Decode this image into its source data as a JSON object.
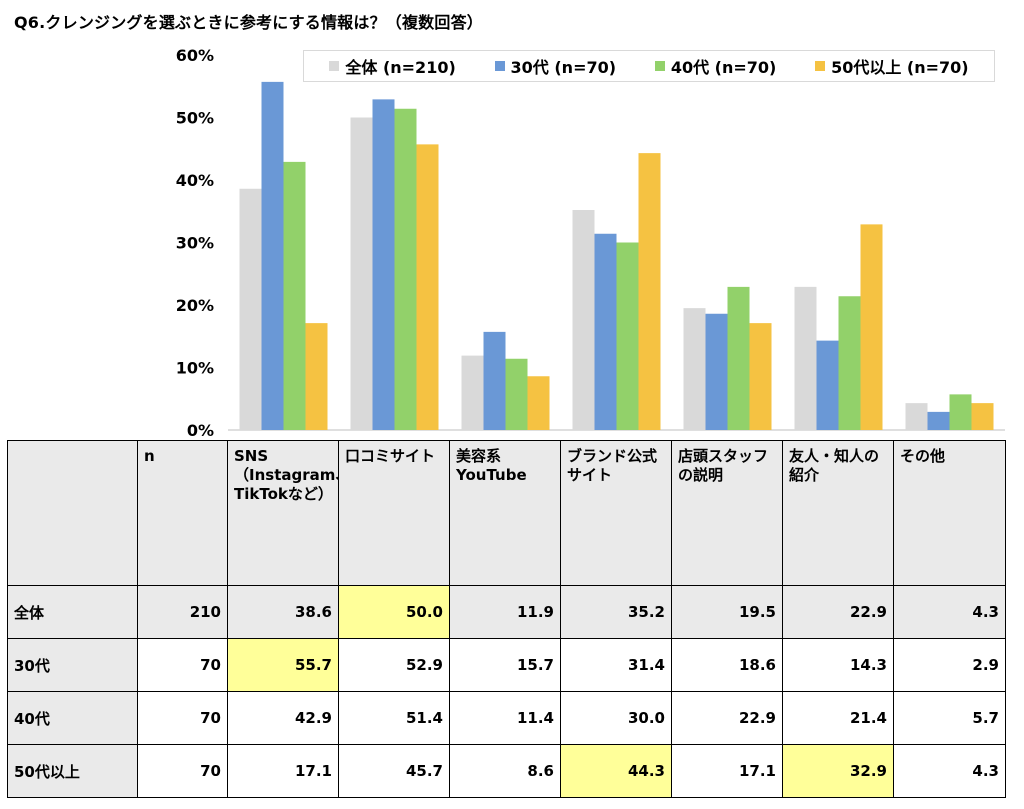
{
  "title": "Q6.クレンジングを選ぶときに参考にする情報は？（複数回答）",
  "chart_data": {
    "type": "bar",
    "categories": [
      "SNS（Instagram、TikTokなど）",
      "口コミサイト",
      "美容系YouTube",
      "ブランド公式サイト",
      "店頭スタッフの説明",
      "友人・知人の紹介",
      "その他"
    ],
    "series": [
      {
        "name": "全体 (n=210)",
        "color": "#d9d9d9",
        "values": [
          38.6,
          50.0,
          11.9,
          35.2,
          19.5,
          22.9,
          4.3
        ]
      },
      {
        "name": "30代 (n=70)",
        "color": "#6a98d6",
        "values": [
          55.7,
          52.9,
          15.7,
          31.4,
          18.6,
          14.3,
          2.9
        ]
      },
      {
        "name": "40代 (n=70)",
        "color": "#92d16a",
        "values": [
          42.9,
          51.4,
          11.4,
          30.0,
          22.9,
          21.4,
          5.7
        ]
      },
      {
        "name": "50代以上 (n=70)",
        "color": "#f5c242",
        "values": [
          17.1,
          45.7,
          8.6,
          44.3,
          17.1,
          32.9,
          4.3
        ]
      }
    ],
    "yticks": [
      "0%",
      "10%",
      "20%",
      "30%",
      "40%",
      "50%",
      "60%"
    ],
    "ylim": [
      0,
      60
    ],
    "legend_position": "top"
  },
  "table": {
    "headers": [
      "n",
      "SNS（Instagram、TikTokなど）",
      "口コミサイト",
      "美容系YouTube",
      "ブランド公式サイト",
      "店頭スタッフの説明",
      "友人・知人の紹介",
      "その他"
    ],
    "rows": [
      {
        "label": "全体",
        "n": "210",
        "values": [
          "38.6",
          "50.0",
          "11.9",
          "35.2",
          "19.5",
          "22.9",
          "4.3"
        ],
        "highlight": [
          1
        ]
      },
      {
        "label": "30代",
        "n": "70",
        "values": [
          "55.7",
          "52.9",
          "15.7",
          "31.4",
          "18.6",
          "14.3",
          "2.9"
        ],
        "highlight": [
          0
        ]
      },
      {
        "label": "40代",
        "n": "70",
        "values": [
          "42.9",
          "51.4",
          "11.4",
          "30.0",
          "22.9",
          "21.4",
          "5.7"
        ],
        "highlight": []
      },
      {
        "label": "50代以上",
        "n": "70",
        "values": [
          "17.1",
          "45.7",
          "8.6",
          "44.3",
          "17.1",
          "32.9",
          "4.3"
        ],
        "highlight": [
          3,
          5
        ]
      }
    ],
    "highlight_color": "#ffff99"
  }
}
